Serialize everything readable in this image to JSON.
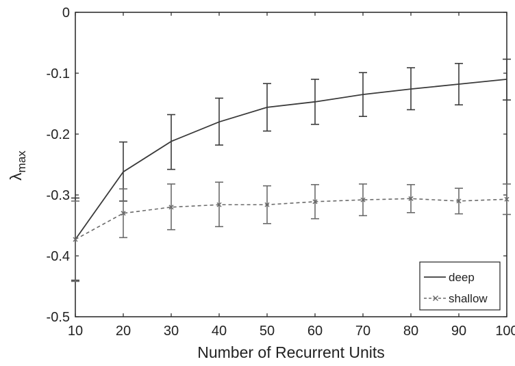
{
  "chart_data": {
    "type": "line",
    "title": "",
    "xlabel": "Number of Recurrent Units",
    "ylabel": "λmax",
    "ylabel_main": "λ",
    "ylabel_sub": "max",
    "x": [
      10,
      20,
      30,
      40,
      50,
      60,
      70,
      80,
      90,
      100
    ],
    "xlim": [
      10,
      100
    ],
    "ylim": [
      -0.5,
      0
    ],
    "xticks": [
      10,
      20,
      30,
      40,
      50,
      60,
      70,
      80,
      90,
      100
    ],
    "yticks": [
      0,
      -0.1,
      -0.2,
      -0.3,
      -0.4,
      -0.5
    ],
    "ytick_labels": [
      "0",
      "-0.1",
      "-0.2",
      "-0.3",
      "-0.4",
      "-0.5"
    ],
    "grid": false,
    "legend_position": "bottom-right",
    "series": [
      {
        "name": "deep",
        "line_style": "solid",
        "marker": "none",
        "color": "#3a3a3a",
        "values": [
          -0.373,
          -0.262,
          -0.212,
          -0.18,
          -0.156,
          -0.147,
          -0.135,
          -0.126,
          -0.118,
          -0.11
        ],
        "err_low": [
          -0.44,
          -0.31,
          -0.258,
          -0.218,
          -0.195,
          -0.184,
          -0.171,
          -0.16,
          -0.152,
          -0.144
        ],
        "err_high": [
          -0.305,
          -0.213,
          -0.168,
          -0.141,
          -0.117,
          -0.11,
          -0.099,
          -0.091,
          -0.084,
          -0.077
        ]
      },
      {
        "name": "shallow",
        "line_style": "dashed",
        "marker": "x",
        "color": "#6a6a6a",
        "values": [
          -0.373,
          -0.33,
          -0.32,
          -0.316,
          -0.316,
          -0.311,
          -0.308,
          -0.306,
          -0.31,
          -0.307
        ],
        "err_low": [
          -0.442,
          -0.37,
          -0.357,
          -0.352,
          -0.347,
          -0.339,
          -0.334,
          -0.329,
          -0.331,
          -0.332
        ],
        "err_high": [
          -0.31,
          -0.29,
          -0.282,
          -0.279,
          -0.285,
          -0.283,
          -0.282,
          -0.283,
          -0.289,
          -0.282
        ]
      }
    ]
  }
}
